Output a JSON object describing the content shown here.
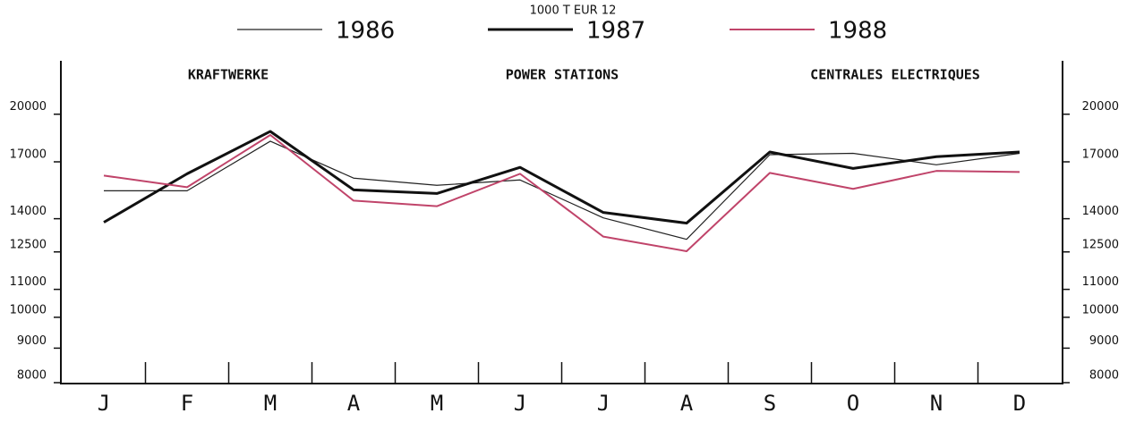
{
  "chart_data": {
    "type": "line",
    "unit_label": "1000 T    EUR 12",
    "annotations": [
      "KRAFTWERKE",
      "POWER STATIONS",
      "CENTRALES ELECTRIQUES"
    ],
    "categories": [
      "J",
      "F",
      "M",
      "A",
      "M",
      "J",
      "J",
      "A",
      "S",
      "O",
      "N",
      "D"
    ],
    "series": [
      {
        "name": "1986",
        "color": "#222222",
        "width": 1.2,
        "values": [
          15400,
          15400,
          18240,
          16080,
          15690,
          15980,
          14040,
          13050,
          17420,
          17500,
          16830,
          17500
        ]
      },
      {
        "name": "1987",
        "color": "#111111",
        "width": 3,
        "values": [
          13830,
          16320,
          18860,
          15450,
          15260,
          16680,
          14300,
          13790,
          17580,
          16620,
          17300,
          17580
        ]
      },
      {
        "name": "1988",
        "color": "#c0446a",
        "width": 2,
        "values": [
          16220,
          15590,
          18630,
          14890,
          14610,
          16320,
          13170,
          12530,
          16370,
          15500,
          16480,
          16420
        ]
      }
    ],
    "ylim": [
      8000,
      24000
    ],
    "log_scale": true,
    "yticks": [
      8000,
      9000,
      10000,
      11000,
      12500,
      14000,
      17000,
      20000
    ]
  }
}
